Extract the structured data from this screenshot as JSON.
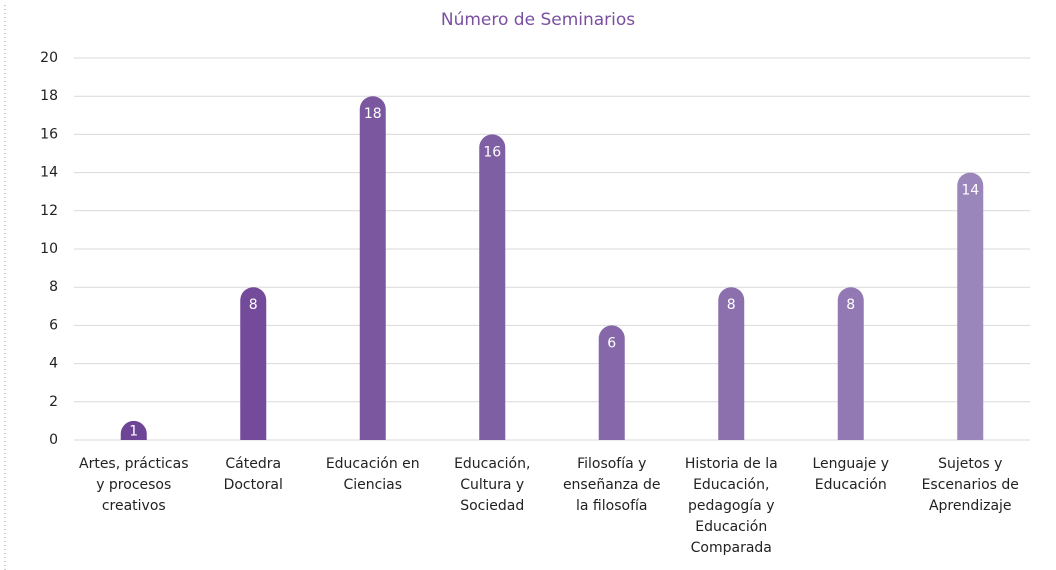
{
  "chart_data": {
    "type": "bar",
    "title": "Número de Seminarios",
    "categories": [
      "Artes, prácticas y procesos creativos",
      "Cátedra Doctoral",
      "Educación en Ciencias",
      "Educación, Cultura y Sociedad",
      "Filosofía y enseñanza de la filosofía",
      "Historia de la Educación, pedagogía y Educación Comparada",
      "Lenguaje y Educación",
      "Sujetos y Escenarios de Aprendizaje"
    ],
    "values": [
      1,
      8,
      18,
      16,
      6,
      8,
      8,
      14
    ],
    "colors": [
      "#6e4496",
      "#744a9a",
      "#7a579f",
      "#7f5fa4",
      "#8667a9",
      "#8c70ae",
      "#9379b3",
      "#9b86bb"
    ],
    "ylim": [
      0,
      20
    ],
    "yticks": [
      0,
      2,
      4,
      6,
      8,
      10,
      12,
      14,
      16,
      18,
      20
    ],
    "grid": true
  }
}
